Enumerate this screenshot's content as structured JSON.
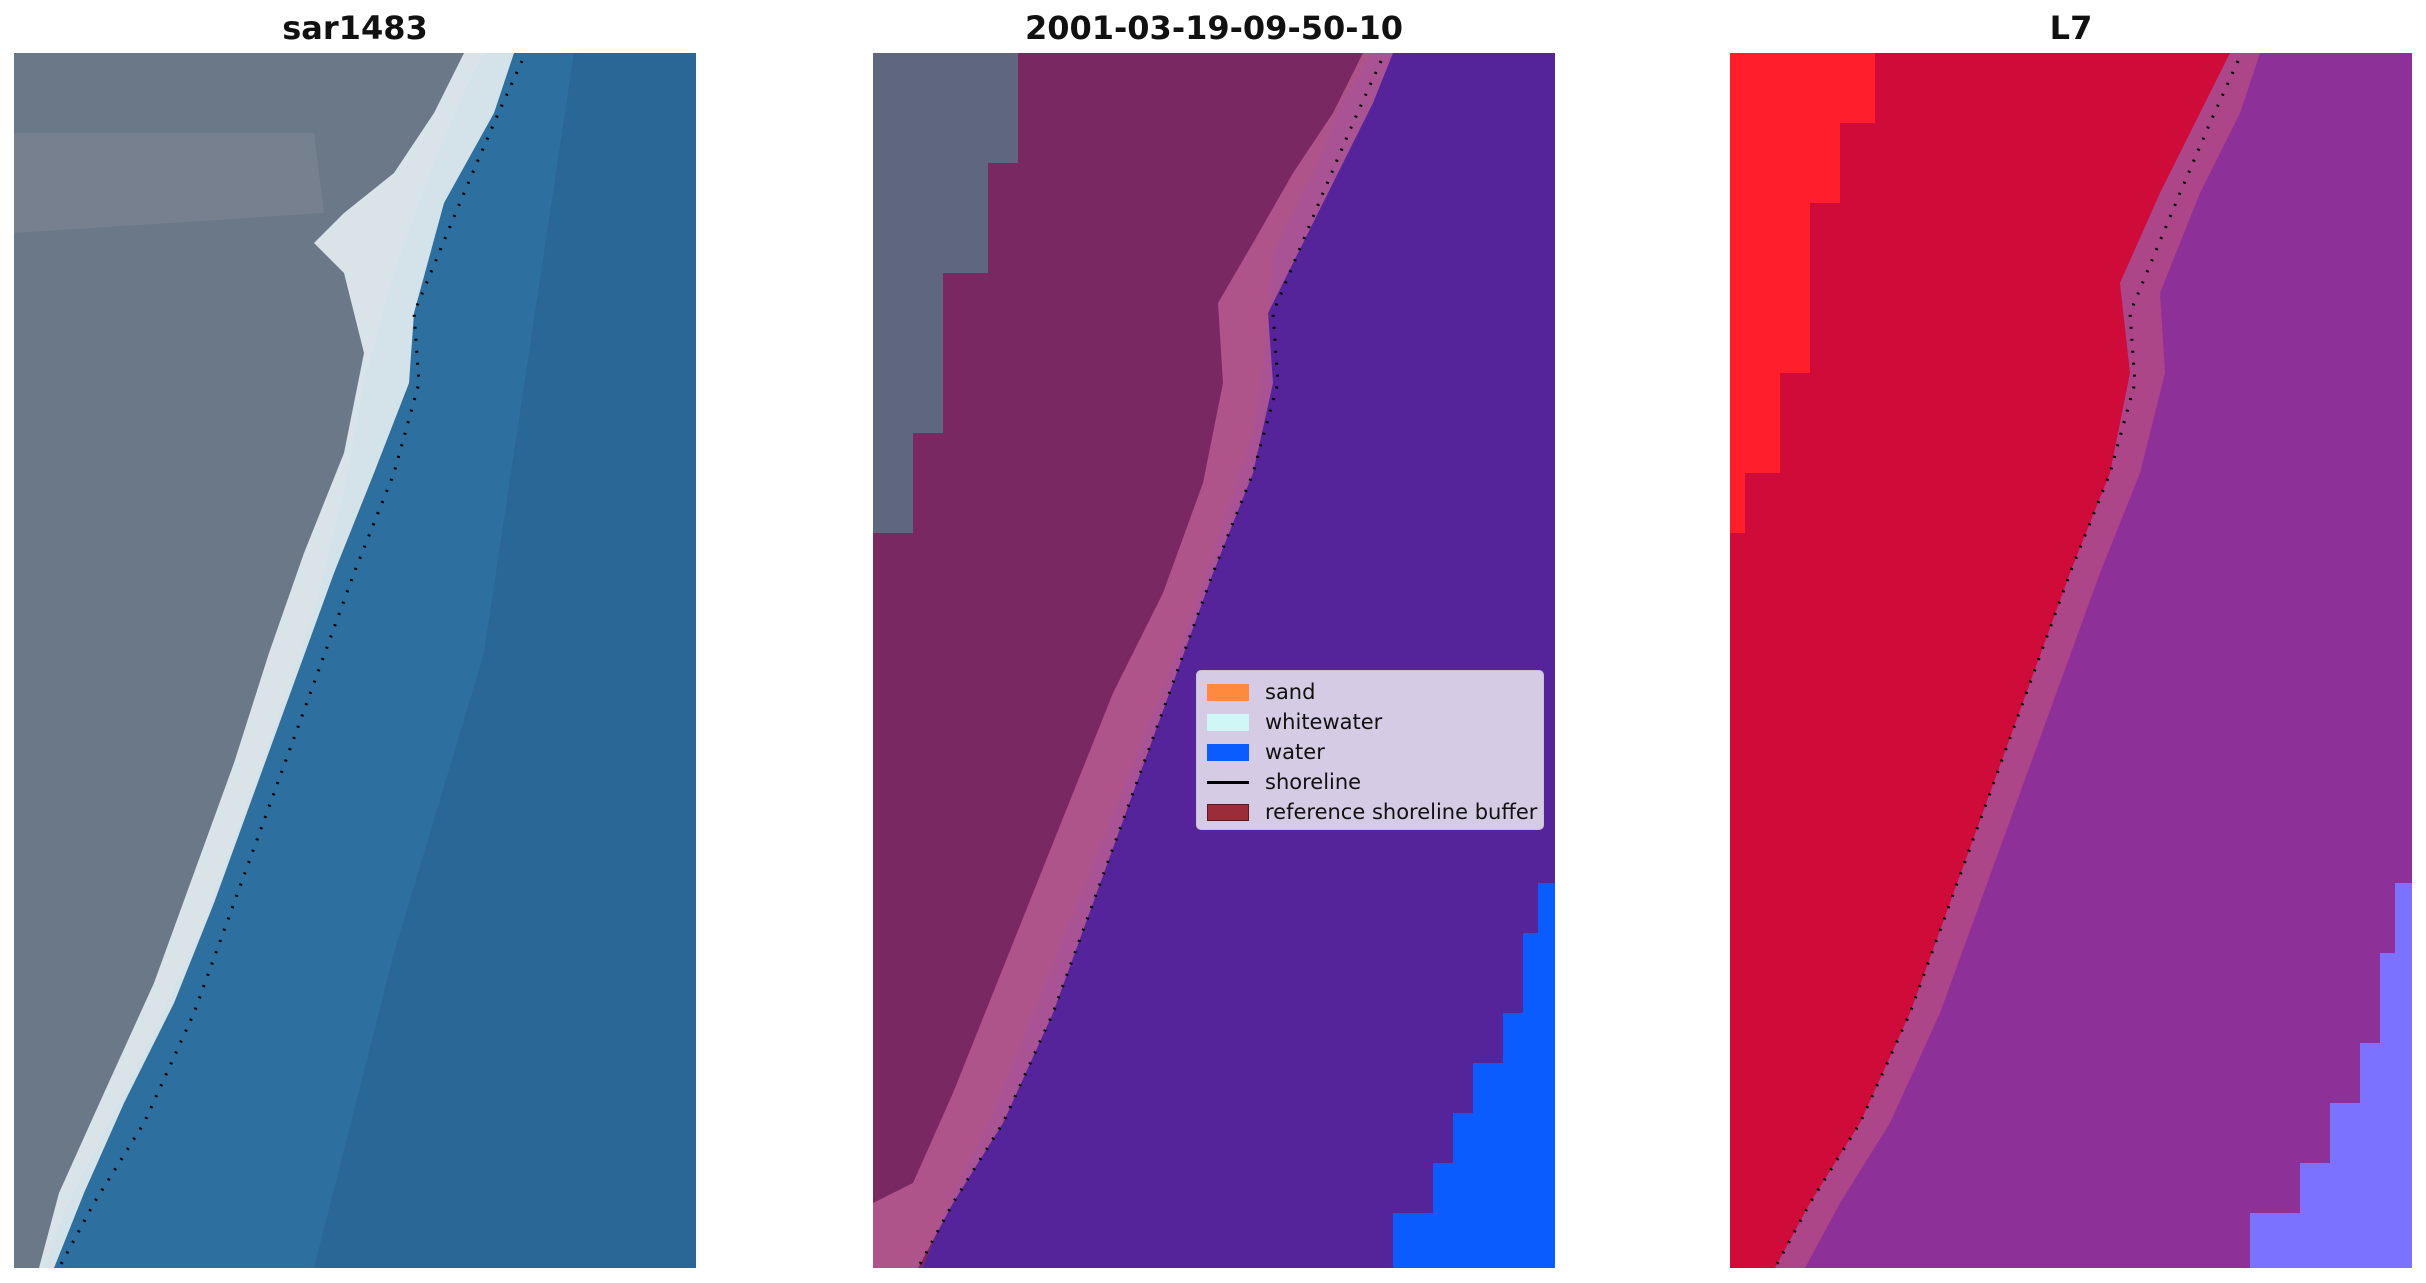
{
  "panels": [
    {
      "title": "sar1483"
    },
    {
      "title": "2001-03-19-09-50-10"
    },
    {
      "title": "L7"
    }
  ],
  "legend": {
    "items": [
      {
        "label": "sand",
        "color": "#ff8a3d",
        "kind": "patch"
      },
      {
        "label": "whitewater",
        "color": "#cff7f5",
        "kind": "patch"
      },
      {
        "label": "water",
        "color": "#0a5cff",
        "kind": "patch"
      },
      {
        "label": "shoreline",
        "color": "#000000",
        "kind": "line"
      },
      {
        "label": "reference shoreline buffer",
        "color": "#9b2c3a",
        "kind": "patch"
      }
    ]
  },
  "colors": {
    "land_rgb": "#6b7888",
    "water_rgb": "#2d6f9f",
    "surf_rgb": "#e7eef2",
    "classified_water": "#55249a",
    "classified_buffer": "#7a2862",
    "classified_surf": "#b85c93",
    "mndwi_red": "#cf0b3a",
    "mndwi_purple": "#8d3098",
    "mndwi_bright_red": "#ff1f2a",
    "mndwi_blue": "#7b73ff"
  }
}
